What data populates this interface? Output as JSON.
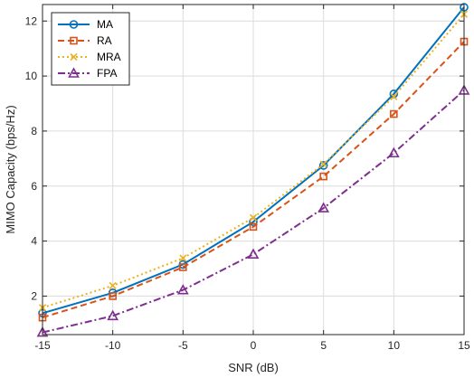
{
  "chart_data": {
    "type": "line",
    "title": "",
    "xlabel": "SNR (dB)",
    "ylabel": "MIMO Capacity (bps/Hz)",
    "x": [
      -15,
      -10,
      -5,
      0,
      5,
      10,
      15
    ],
    "xlim": [
      -15,
      15
    ],
    "ylim": [
      0.6,
      12.6
    ],
    "xticks": [
      -15,
      -10,
      -5,
      0,
      5,
      10,
      15
    ],
    "yticks": [
      2,
      4,
      6,
      8,
      10,
      12
    ],
    "grid": true,
    "legend_position": "top-left",
    "series": [
      {
        "name": "MA",
        "values": [
          1.38,
          2.12,
          3.15,
          4.7,
          6.75,
          9.35,
          12.5
        ],
        "color": "#0072BD",
        "line_style": "solid",
        "marker": "circle"
      },
      {
        "name": "RA",
        "values": [
          1.22,
          2.0,
          3.05,
          4.52,
          6.35,
          8.62,
          11.25
        ],
        "color": "#D95319",
        "line_style": "dashed",
        "marker": "square"
      },
      {
        "name": "MRA",
        "values": [
          1.58,
          2.38,
          3.38,
          4.85,
          6.8,
          9.25,
          12.25
        ],
        "color": "#EDB120",
        "line_style": "dotted",
        "marker": "x"
      },
      {
        "name": "FPA",
        "values": [
          0.68,
          1.28,
          2.22,
          3.52,
          5.2,
          7.2,
          9.48
        ],
        "color": "#7E2F8E",
        "line_style": "dashdot",
        "marker": "triangle"
      }
    ]
  }
}
